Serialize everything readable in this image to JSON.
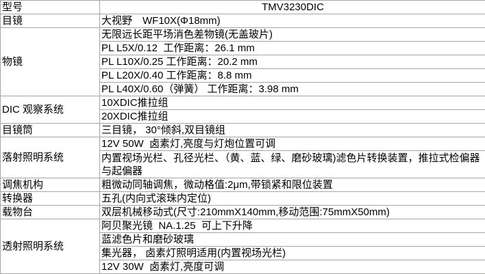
{
  "page": {
    "model_code": "TMV3230DIC",
    "table_border_color": "#a3a7a3",
    "text_color": "#000000",
    "background_color": "#ffffff"
  },
  "table": {
    "groups": [
      {
        "label": "型号",
        "values": [
          "TMV3230DIC"
        ]
      },
      {
        "label": "目镜",
        "values": [
          "大视野　WF10X(Φ18mm)"
        ]
      },
      {
        "label": "物镜",
        "values": [
          "无限远长距平场消色差物镜(无盖玻片)",
          "PL L5X/0.12  工作距离：26.1 mm",
          "PL L10X/0.25 工作距离：20.2 mm",
          "PL L20X/0.40 工作距离：8.8 mm",
          "PL L40X/0.60（弹簧） 工作距离：3.98 mm"
        ]
      },
      {
        "label": "DIC 观察系统",
        "values": [
          "10XDIC推拉组",
          "20XDIC推拉组"
        ]
      },
      {
        "label": "目镜筒",
        "values": [
          "三目镜， 30°倾斜,双目镜组"
        ]
      },
      {
        "label": "落射照明系统",
        "values": [
          "12V 50W  卤素灯,亮度与灯炮位置可调",
          "内置视场光栏、孔径光栏、（黄、蓝、绿、磨砂玻璃)滤色片转换装置，推拉式检偏器与起偏器"
        ]
      },
      {
        "label": "调焦机构",
        "values": [
          "粗微动同轴调焦，微动格值:2μm,带锁紧和限位装置"
        ]
      },
      {
        "label": "转换器",
        "values": [
          "五孔(内向式滚珠内定位)"
        ]
      },
      {
        "label": "载物台",
        "values": [
          "双层机械移动式(尺寸:210mmX140mm,移动范围:75mmX50mm)"
        ]
      },
      {
        "label": "透射照明系统",
        "values": [
          "阿贝聚光镜  NA.1.25  可上下升降",
          "蓝滤色片和磨砂玻璃",
          "集光器， 卤素灯照明适用(内置视场光栏)",
          "12V 30W  卤素灯,亮度可调"
        ]
      }
    ]
  }
}
